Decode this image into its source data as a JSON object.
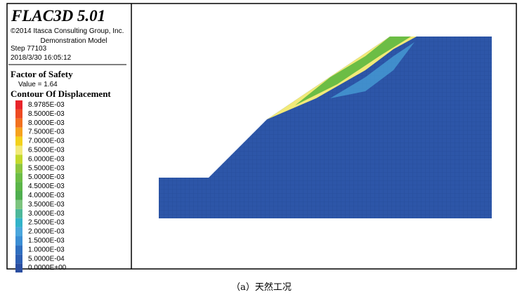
{
  "header": {
    "title": "FLAC3D 5.01",
    "copyright": "©2014 Itasca Consulting Group, Inc.",
    "model": "Demonstration Model",
    "step": "Step 77103",
    "date": "2018/3/30 16:05:12"
  },
  "factor_of_safety": {
    "title": "Factor of Safety",
    "value": "Value = 1.64"
  },
  "contour": {
    "title": "Contour Of Displacement",
    "entries": [
      {
        "label": "8.9785E-03",
        "color": "#e8232a"
      },
      {
        "label": "8.5000E-03",
        "color": "#ee4a22"
      },
      {
        "label": "8.0000E-03",
        "color": "#f2711f"
      },
      {
        "label": "7.5000E-03",
        "color": "#f6a21e"
      },
      {
        "label": "7.0000E-03",
        "color": "#f3d11c"
      },
      {
        "label": "6.5000E-03",
        "color": "#f2ea78"
      },
      {
        "label": "6.0000E-03",
        "color": "#c4d92c"
      },
      {
        "label": "5.5000E-03",
        "color": "#8dc63f"
      },
      {
        "label": "5.0000E-03",
        "color": "#6cbd45"
      },
      {
        "label": "4.5000E-03",
        "color": "#5bb548"
      },
      {
        "label": "4.0000E-03",
        "color": "#4fae4f"
      },
      {
        "label": "3.5000E-03",
        "color": "#7cc47e"
      },
      {
        "label": "3.0000E-03",
        "color": "#4db89a"
      },
      {
        "label": "2.5000E-03",
        "color": "#33b3c9"
      },
      {
        "label": "2.0000E-03",
        "color": "#4aa6dc"
      },
      {
        "label": "1.5000E-03",
        "color": "#3b8ed4"
      },
      {
        "label": "1.0000E-03",
        "color": "#2f6fc0"
      },
      {
        "label": "5.0000E-04",
        "color": "#2d5fb3"
      },
      {
        "label": "0.0000E+00",
        "color": "#2a4ea0"
      }
    ]
  },
  "caption": "（a）天然工况"
}
